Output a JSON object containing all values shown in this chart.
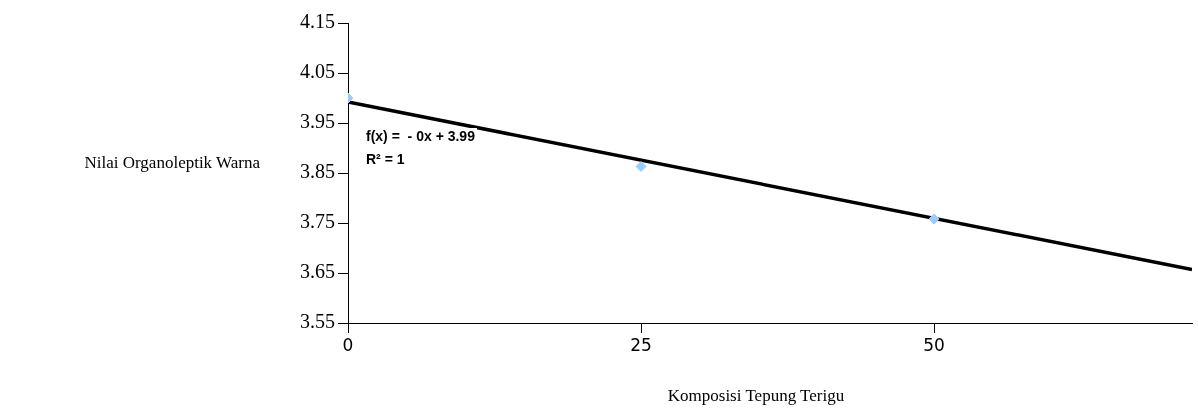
{
  "chart_data": {
    "type": "scatter",
    "xlabel": "Komposisi Tepung Terigu",
    "ylabel": "Nilai Organoleptik Warna",
    "annotations": [
      "f(x) =  - 0x + 3.99",
      "R² = 1"
    ],
    "xlim": [
      0,
      72
    ],
    "xticks": [
      0,
      25,
      50
    ],
    "ylim": [
      3.55,
      4.15
    ],
    "yticks": [
      3.55,
      3.65,
      3.75,
      3.85,
      3.95,
      4.05,
      4.15
    ],
    "grid": false,
    "legend": false,
    "marker": "diamond",
    "series": [
      {
        "color": "#99ccff",
        "x": [
          0,
          25,
          50
        ],
        "values": [
          4.0,
          3.863,
          3.758
        ]
      },
      {
        "type": "line",
        "color": "#000000",
        "x": [
          0,
          72
        ],
        "values": [
          3.992,
          3.657
        ],
        "marker": "none",
        "line_style": "solid"
      }
    ]
  }
}
